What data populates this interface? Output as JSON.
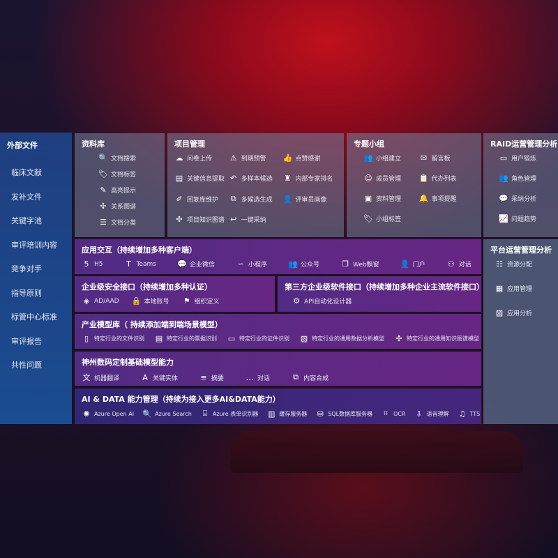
{
  "sidebar": {
    "title": "外部文件",
    "items": [
      "临床文献",
      "发补文件",
      "关键字池",
      "审评培训内容",
      "竞争对手",
      "指导原则",
      "标管中心标准",
      "审评报告",
      "共性问题"
    ]
  },
  "library": {
    "title": "资料库",
    "items": [
      {
        "icon": "doc-search-icon",
        "label": "文档搜索"
      },
      {
        "icon": "tag-icon",
        "label": "文档标签"
      },
      {
        "icon": "pen-icon",
        "label": "高亮提示"
      },
      {
        "icon": "graph-icon",
        "label": "关系图谱"
      },
      {
        "icon": "doc-list-icon",
        "label": "文档分类"
      }
    ]
  },
  "project": {
    "title": "项目管理",
    "items": [
      {
        "icon": "cloud-upload-icon",
        "label": "问卷上传"
      },
      {
        "icon": "alarm-icon",
        "label": "到期预警"
      },
      {
        "icon": "thumbs-up-icon",
        "label": "点赞感谢"
      },
      {
        "icon": "form-icon",
        "label": "关键信息提取"
      },
      {
        "icon": "reply-all-icon",
        "label": "多样本候选"
      },
      {
        "icon": "ranking-icon",
        "label": "内部专家排名"
      },
      {
        "icon": "edit-icon",
        "label": "回复库维护"
      },
      {
        "icon": "puzzle-icon",
        "label": "多候选生成"
      },
      {
        "icon": "user-icon",
        "label": "评审员画像"
      },
      {
        "icon": "graph-icon",
        "label": "项目知识图谱"
      },
      {
        "icon": "reply-icon",
        "label": "一键采纳"
      }
    ]
  },
  "group": {
    "title": "专题小组",
    "items": [
      {
        "icon": "users-icon",
        "label": "小组建立"
      },
      {
        "icon": "bbs-icon",
        "label": "留言板"
      },
      {
        "icon": "user-add-icon",
        "label": "成员管理"
      },
      {
        "icon": "clipboard-icon",
        "label": "代办列表"
      },
      {
        "icon": "folder-icon",
        "label": "资料管理"
      },
      {
        "icon": "bell-icon",
        "label": "事项提醒"
      },
      {
        "icon": "tag-icon",
        "label": "小组标签"
      }
    ]
  },
  "raid": {
    "title": "RAID运营管理分析",
    "items": [
      {
        "icon": "id-card-icon",
        "label": "用户锻炼"
      },
      {
        "icon": "users-icon",
        "label": "角色管理"
      },
      {
        "icon": "qa-icon",
        "label": "采纳分析"
      },
      {
        "icon": "trend-icon",
        "label": "问题趋势"
      }
    ]
  },
  "platform": {
    "title": "平台运营管理分析",
    "items": [
      {
        "icon": "checklist-icon",
        "label": "资源分配"
      },
      {
        "icon": "apps-icon",
        "label": "应用管理"
      },
      {
        "icon": "chart-icon",
        "label": "应用分析"
      }
    ]
  },
  "app": {
    "title": "应用交互（持续增加多种客户端）",
    "items": [
      {
        "icon": "html5-icon",
        "label": "H5"
      },
      {
        "icon": "teams-icon",
        "label": "Teams"
      },
      {
        "icon": "wecom-icon",
        "label": "企业微信"
      },
      {
        "icon": "miniprogram-icon",
        "label": "小程序"
      },
      {
        "icon": "users-icon",
        "label": "公众号"
      },
      {
        "icon": "window-icon",
        "label": "Web飘窗"
      },
      {
        "icon": "portal-icon",
        "label": "门户"
      },
      {
        "icon": "chat-users-icon",
        "label": "对话"
      }
    ]
  },
  "security": {
    "title": "企业级安全接口（持续增加多种认证）",
    "items": [
      {
        "icon": "ad-icon",
        "label": "AD/AAD"
      },
      {
        "icon": "user-lock-icon",
        "label": "本地账号"
      },
      {
        "icon": "org-icon",
        "label": "组织定义"
      }
    ]
  },
  "third": {
    "title": "第三方企业级软件接口（持续增加多种企业主流软件接口）",
    "items": [
      {
        "icon": "gear-icon",
        "label": "API自动化设计器"
      }
    ]
  },
  "industry": {
    "title": "产业模型库（ 持续添加端到端场景模型）",
    "items": [
      {
        "icon": "doc-icon",
        "label": "特定行业的文件识别"
      },
      {
        "icon": "receipt-icon",
        "label": "特定行业的票据识别"
      },
      {
        "icon": "id-card-icon",
        "label": "特定行业的证件识别"
      },
      {
        "icon": "image-icon",
        "label": "特定行业的通用数据分析模型"
      },
      {
        "icon": "graph-icon",
        "label": "特定行业的通用知识图谱模型"
      }
    ]
  },
  "base": {
    "title": "神州数码定制基础模型能力",
    "items": [
      {
        "icon": "translate-icon",
        "label": "机器翻译"
      },
      {
        "icon": "entity-icon",
        "label": "关键实体"
      },
      {
        "icon": "summary-icon",
        "label": "摘要"
      },
      {
        "icon": "chat-icon",
        "label": "对话"
      },
      {
        "icon": "puzzle-icon",
        "label": "内容合成"
      }
    ]
  },
  "ai": {
    "title": "AI & DATA 能力管理（持续为接入更多AI&DATA能力）",
    "items": [
      {
        "icon": "openai-icon",
        "label": "Azure Open AI"
      },
      {
        "icon": "search-icon",
        "label": "Azure Search"
      },
      {
        "icon": "form-recognizer-icon",
        "label": "Azure 表单识别器"
      },
      {
        "icon": "cache-icon",
        "label": "缓存服务器"
      },
      {
        "icon": "database-icon",
        "label": "SQL数据库服务器"
      },
      {
        "icon": "ocr-icon",
        "label": "OCR"
      },
      {
        "icon": "speech-icon",
        "label": "语音理解"
      },
      {
        "icon": "tts-icon",
        "label": "TTS"
      }
    ]
  }
}
